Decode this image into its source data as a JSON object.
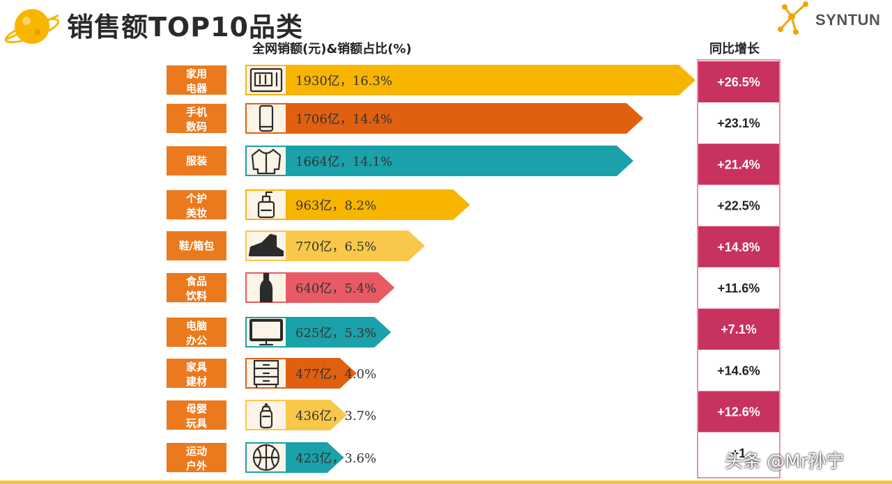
{
  "header": {
    "title": "销售额TOP10品类",
    "logo_text": "SYNTUN",
    "col_left": "全网销额(元)&销额占比(%)",
    "col_right": "同比增长"
  },
  "watermark": "头条 @Mr孙宁",
  "colors": {
    "orange": "#eb7a1e",
    "gold": "#f7b500",
    "deep_orange": "#e06010",
    "teal": "#1aa1a9",
    "light_gold": "#f9c84a",
    "coral": "#e85a64",
    "magenta": "#c8325f",
    "cream": "#fdf4e8",
    "border": "#e07080"
  },
  "chart_data": {
    "type": "bar",
    "orientation": "horizontal",
    "categories": [
      "家用电器",
      "手机数码",
      "服装",
      "个护美妆",
      "鞋/箱包",
      "食品饮料",
      "电脑办公",
      "家具建材",
      "母婴玩具",
      "运动户外"
    ],
    "category_lines": [
      [
        "家用",
        "电器"
      ],
      [
        "手机",
        "数码"
      ],
      [
        "服装"
      ],
      [
        "个护",
        "美妆"
      ],
      [
        "鞋/箱包"
      ],
      [
        "食品",
        "饮料"
      ],
      [
        "电脑",
        "办公"
      ],
      [
        "家具",
        "建材"
      ],
      [
        "母婴",
        "玩具"
      ],
      [
        "运动",
        "户外"
      ]
    ],
    "values": [
      1930,
      1706,
      1664,
      963,
      770,
      640,
      625,
      477,
      436,
      423
    ],
    "shares": [
      16.3,
      14.4,
      14.1,
      8.2,
      6.5,
      5.4,
      5.3,
      4.0,
      3.7,
      3.6
    ],
    "value_labels": [
      "1930亿，16.3%",
      "1706亿，14.4%",
      "1664亿，14.1%",
      "963亿，8.2%",
      "770亿，6.5%",
      "640亿，5.4%",
      "625亿，5.3%",
      "477亿，4.0%",
      "436亿，3.7%",
      "423亿，3.6%"
    ],
    "growth": [
      26.5,
      23.1,
      21.4,
      22.5,
      14.8,
      11.6,
      7.1,
      14.6,
      12.6,
      null
    ],
    "growth_labels": [
      "+26.5%",
      "+23.1%",
      "+21.4%",
      "+22.5%",
      "+14.8%",
      "+11.6%",
      "+7.1%",
      "+14.6%",
      "+12.6%",
      "+1"
    ],
    "bar_colors": [
      "#f7b500",
      "#e06010",
      "#1aa1a9",
      "#f7b500",
      "#f9c84a",
      "#e85a64",
      "#1aa1a9",
      "#e06010",
      "#f9c84a",
      "#1aa1a9"
    ],
    "icons": [
      "microwave-icon",
      "phone-icon",
      "clothing-icon",
      "lotion-bottle-icon",
      "sneaker-icon",
      "wine-bottle-icon",
      "monitor-icon",
      "cabinet-icon",
      "baby-bottle-icon",
      "basketball-icon"
    ],
    "title": "销售额TOP10品类",
    "xlabel": "全网销额(元)&销额占比(%)",
    "ylabel": "",
    "grid": false,
    "legend": "none"
  }
}
